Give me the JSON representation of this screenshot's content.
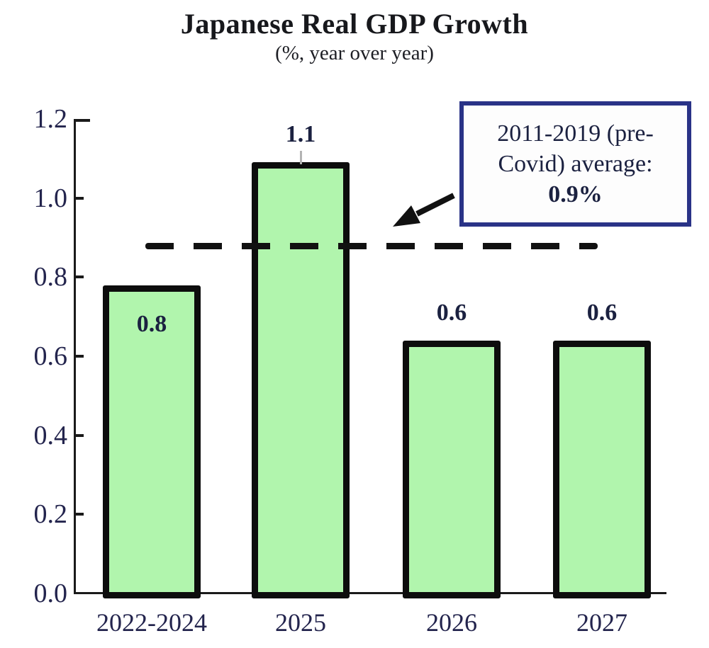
{
  "header": {
    "title": "Japanese Real GDP Growth",
    "subtitle": "(%, year over year)"
  },
  "chart_data": {
    "type": "bar",
    "title": "Japanese Real GDP Growth",
    "subtitle": "(%, year over year)",
    "categories": [
      "2022-2024",
      "2025",
      "2026",
      "2027"
    ],
    "values": [
      0.8,
      1.1,
      0.6,
      0.6
    ],
    "bar_labels": [
      "0.8",
      "1.1",
      "0.6",
      "0.6"
    ],
    "plotted_values": [
      0.78,
      1.09,
      0.64,
      0.64
    ],
    "label_placement": [
      "inside",
      "above-leader",
      "above",
      "above"
    ],
    "xlabel": "",
    "ylabel": "",
    "ylim": [
      0,
      1.2
    ],
    "ytick_labels": [
      "0.0",
      "0.2",
      "0.4",
      "0.6",
      "0.8",
      "1.0",
      "1.2"
    ],
    "grid": false,
    "legend": false,
    "reference_line": {
      "value": 0.88,
      "style": "dashed",
      "meaning": "2011-2019 (pre-Covid) average: 0.9%"
    },
    "annotation": {
      "line1": "2011-2019 (pre-",
      "line2": "Covid) average:",
      "line3": "0.9%"
    },
    "colors": {
      "bar_fill": "#b1f5ad",
      "bar_border": "#0d0d0d",
      "reference_line": "#111111",
      "annotation_border": "#2a3387",
      "text": "#1b2140",
      "axis": "#1a1a1a",
      "leader_line": "#b3b3b3"
    }
  }
}
